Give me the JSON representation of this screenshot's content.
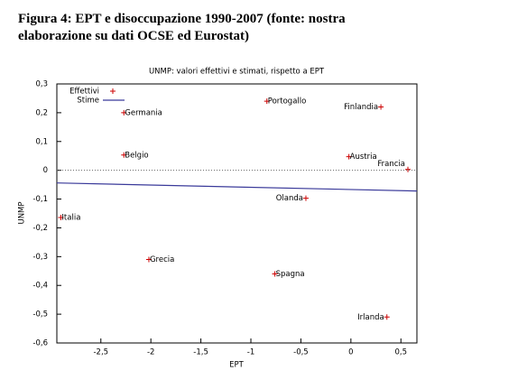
{
  "heading": "Figura 4: EPT e disoccupazione 1990-2007 (fonte: nostra elaborazione su dati OCSE ed Eurostat)",
  "chart_data": {
    "type": "scatter",
    "title": "UNMP: valori effettivi e stimati, rispetto a EPT",
    "x_label": "EPT",
    "y_label": "UNMP",
    "xlim": [
      -2.94,
      0.66
    ],
    "ylim": [
      -0.6,
      0.3
    ],
    "xticks": [
      {
        "value": -2.5,
        "label": "-2,5"
      },
      {
        "value": -2,
        "label": "-2"
      },
      {
        "value": -1.5,
        "label": "-1,5"
      },
      {
        "value": -1,
        "label": "-1"
      },
      {
        "value": -0.5,
        "label": "-0,5"
      },
      0,
      {
        "value": 0.5,
        "label": "0,5"
      }
    ],
    "yticks": [
      {
        "value": 0.3,
        "label": "0,3"
      },
      {
        "value": 0.2,
        "label": "0,2"
      },
      {
        "value": 0.1,
        "label": "0,1"
      },
      0,
      {
        "value": -0.1,
        "label": "-0,1"
      },
      {
        "value": -0.2,
        "label": "-0,2"
      },
      {
        "value": -0.3,
        "label": "-0,3"
      },
      {
        "value": -0.4,
        "label": "-0,4"
      },
      {
        "value": -0.5,
        "label": "-0,5"
      },
      {
        "value": -0.6,
        "label": "-0,6"
      }
    ],
    "zero_line": true,
    "legend": "top-left",
    "series": [
      {
        "name": "Effettivi",
        "color": "#cc0000",
        "mode": "points",
        "labels": [
          "Germania",
          "Portogallo",
          "Finlandia",
          "Belgio",
          "Austria",
          "Francia",
          "Olanda",
          "Italia",
          "Grecia",
          "Spagna",
          "Irlanda"
        ],
        "x": [
          -2.27,
          -0.84,
          0.3,
          -2.27,
          -0.02,
          0.57,
          -0.45,
          -2.9,
          -2.02,
          -0.76,
          0.36
        ],
        "values": [
          0.2,
          0.24,
          0.22,
          0.053,
          0.047,
          0.003,
          -0.097,
          -0.164,
          -0.31,
          -0.36,
          -0.51
        ]
      },
      {
        "name": "Stime",
        "color": "#3a3a9a",
        "mode": "line",
        "x": [
          -2.94,
          0.66
        ],
        "values": [
          -0.044,
          -0.072
        ]
      }
    ]
  }
}
